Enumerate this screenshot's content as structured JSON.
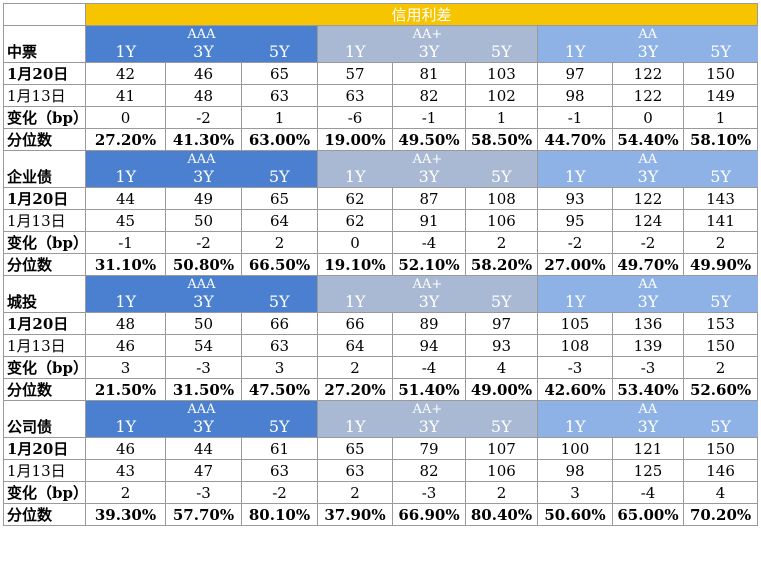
{
  "title": "信用利差",
  "tenors": [
    "1Y",
    "3Y",
    "5Y"
  ],
  "grades": [
    "AAA",
    "AA+",
    "AA"
  ],
  "row_labels": {
    "current": "1月20日",
    "previous": "1月13日",
    "change": "变化（bp）",
    "percentile": "分位数"
  },
  "colors": {
    "title_bg": "#f7c400",
    "aaa_bg": "#4a80cf",
    "aaplus_bg": "#a9b9d3",
    "aa_bg": "#8fb2e6"
  },
  "sections": [
    {
      "name": "中票",
      "current": [
        "42",
        "46",
        "65",
        "57",
        "81",
        "103",
        "97",
        "122",
        "150"
      ],
      "previous": [
        "41",
        "48",
        "63",
        "63",
        "82",
        "102",
        "98",
        "122",
        "149"
      ],
      "change": [
        "0",
        "-2",
        "1",
        "-6",
        "-1",
        "1",
        "-1",
        "0",
        "1"
      ],
      "percentile": [
        "27.20%",
        "41.30%",
        "63.00%",
        "19.00%",
        "49.50%",
        "58.50%",
        "44.70%",
        "54.40%",
        "58.10%"
      ]
    },
    {
      "name": "企业债",
      "current": [
        "44",
        "49",
        "65",
        "62",
        "87",
        "108",
        "93",
        "122",
        "143"
      ],
      "previous": [
        "45",
        "50",
        "64",
        "62",
        "91",
        "106",
        "95",
        "124",
        "141"
      ],
      "change": [
        "-1",
        "-2",
        "2",
        "0",
        "-4",
        "2",
        "-2",
        "-2",
        "2"
      ],
      "percentile": [
        "31.10%",
        "50.80%",
        "66.50%",
        "19.10%",
        "52.10%",
        "58.20%",
        "27.00%",
        "49.70%",
        "49.90%"
      ]
    },
    {
      "name": "城投",
      "current": [
        "48",
        "50",
        "66",
        "66",
        "89",
        "97",
        "105",
        "136",
        "153"
      ],
      "previous": [
        "46",
        "54",
        "63",
        "64",
        "94",
        "93",
        "108",
        "139",
        "150"
      ],
      "change": [
        "3",
        "-3",
        "3",
        "2",
        "-4",
        "4",
        "-3",
        "-3",
        "2"
      ],
      "percentile": [
        "21.50%",
        "31.50%",
        "47.50%",
        "27.20%",
        "51.40%",
        "49.00%",
        "42.60%",
        "53.40%",
        "52.60%"
      ]
    },
    {
      "name": "公司债",
      "current": [
        "46",
        "44",
        "61",
        "65",
        "79",
        "107",
        "100",
        "121",
        "150"
      ],
      "previous": [
        "43",
        "47",
        "63",
        "63",
        "82",
        "106",
        "98",
        "125",
        "146"
      ],
      "change": [
        "2",
        "-3",
        "-2",
        "2",
        "-3",
        "2",
        "3",
        "-4",
        "4"
      ],
      "percentile": [
        "39.30%",
        "57.70%",
        "80.10%",
        "37.90%",
        "66.90%",
        "80.40%",
        "50.60%",
        "65.00%",
        "70.20%"
      ]
    }
  ]
}
